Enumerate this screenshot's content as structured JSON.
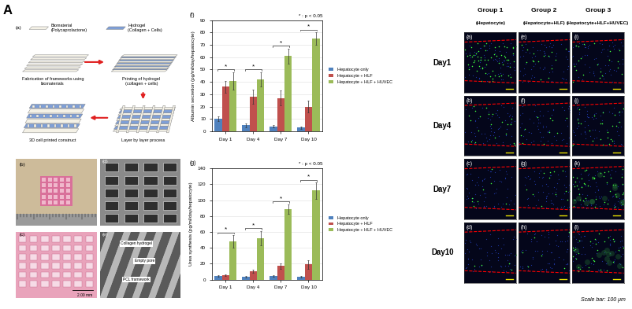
{
  "panel_label": "A",
  "schematic": {
    "panel": "(a)",
    "legend": [
      {
        "text": "Biomaterial\n(Polycaprolactone)"
      },
      {
        "text": "Hydrogel\n(Collagen + Cells)"
      }
    ],
    "steps": [
      "Fabrication of frameworks using\nbiomaterials",
      "Printing of hydrogel\n(collagen + cells)",
      "Layer by layer process",
      "3D cell printed construct"
    ]
  },
  "photos": {
    "panels": [
      "(b)",
      "(c)",
      "(d)",
      "(e)"
    ],
    "scale": "2.00 mm",
    "labels": [
      "Collagen hydrogel",
      "Empty pore",
      "PCL framework"
    ]
  },
  "chart_data": [
    {
      "type": "bar",
      "panel": "(f)",
      "y_label": "Albumin secretion (pg/ml/day/hepatocyte)",
      "categories": [
        "Day 1",
        "Day 4",
        "Day 7",
        "Day 10"
      ],
      "series": [
        {
          "name": "Hepatocyte only",
          "color": "#4f81bd",
          "values": [
            10,
            5,
            4,
            3
          ],
          "error": [
            2,
            1.5,
            1,
            1
          ]
        },
        {
          "name": "Hepatocyte + HLF",
          "color": "#c0504d",
          "values": [
            36,
            28,
            27,
            20
          ],
          "error": [
            5,
            6,
            6,
            5
          ]
        },
        {
          "name": "Hepatocyte + HLF + HUVEC",
          "color": "#9bbb59",
          "values": [
            41,
            42,
            61,
            75
          ],
          "error": [
            7,
            6,
            6,
            5
          ]
        }
      ],
      "ylim": [
        0,
        90
      ],
      "yticks": [
        0,
        10,
        20,
        30,
        40,
        50,
        60,
        70,
        80,
        90
      ],
      "grid": true,
      "legend": "right",
      "annotations": [
        {
          "text": "*",
          "category": "Day 1"
        },
        {
          "text": "*",
          "category": "Day 4"
        },
        {
          "text": "*",
          "category": "Day 7"
        },
        {
          "text": "*",
          "category": "Day 10"
        }
      ],
      "note": "* : p < 0.05"
    },
    {
      "type": "bar",
      "panel": "(g)",
      "y_label": "Urea synthesis (pg/ml/day/hepatocyte)",
      "categories": [
        "Day 1",
        "Day 4",
        "Day 7",
        "Day 10"
      ],
      "series": [
        {
          "name": "Hepatocyte only",
          "color": "#4f81bd",
          "values": [
            5,
            4,
            5,
            4
          ],
          "error": [
            1,
            1,
            1,
            1
          ]
        },
        {
          "name": "Hepatocyte + HLF",
          "color": "#c0504d",
          "values": [
            6,
            11,
            17,
            19
          ],
          "error": [
            1,
            2,
            3,
            5
          ]
        },
        {
          "name": "Hepatocyte + HLF + HUVEC",
          "color": "#9bbb59",
          "values": [
            48,
            52,
            89,
            112
          ],
          "error": [
            8,
            9,
            6,
            10
          ]
        }
      ],
      "ylim": [
        0,
        140
      ],
      "yticks": [
        0,
        20,
        40,
        60,
        80,
        100,
        120,
        140
      ],
      "grid": true,
      "legend": "right",
      "annotations": [
        {
          "text": "*",
          "category": "Day 1"
        },
        {
          "text": "*",
          "category": "Day 4"
        },
        {
          "text": "*",
          "category": "Day 7"
        },
        {
          "text": "*",
          "category": "Day 10"
        }
      ],
      "note": "* : p < 0.05"
    }
  ],
  "fluorescence": {
    "columns": [
      {
        "title": "Group 1",
        "subtitle": "(Hepatocyte)"
      },
      {
        "title": "Group 2",
        "subtitle": "(Hepatocyte+HLF)"
      },
      {
        "title": "Group 3",
        "subtitle": "(Hepatocyte+HLF+HUVEC)"
      }
    ],
    "rows": [
      "Day1",
      "Day4",
      "Day7",
      "Day10"
    ],
    "panels": [
      [
        "(a)",
        "(b)",
        "(c)",
        "(d)"
      ],
      [
        "(e)",
        "(f)",
        "(g)",
        "(h)"
      ],
      [
        "(i)",
        "(j)",
        "(k)",
        "(l)"
      ]
    ],
    "scale_bar": "Scale bar: 100 μm"
  }
}
